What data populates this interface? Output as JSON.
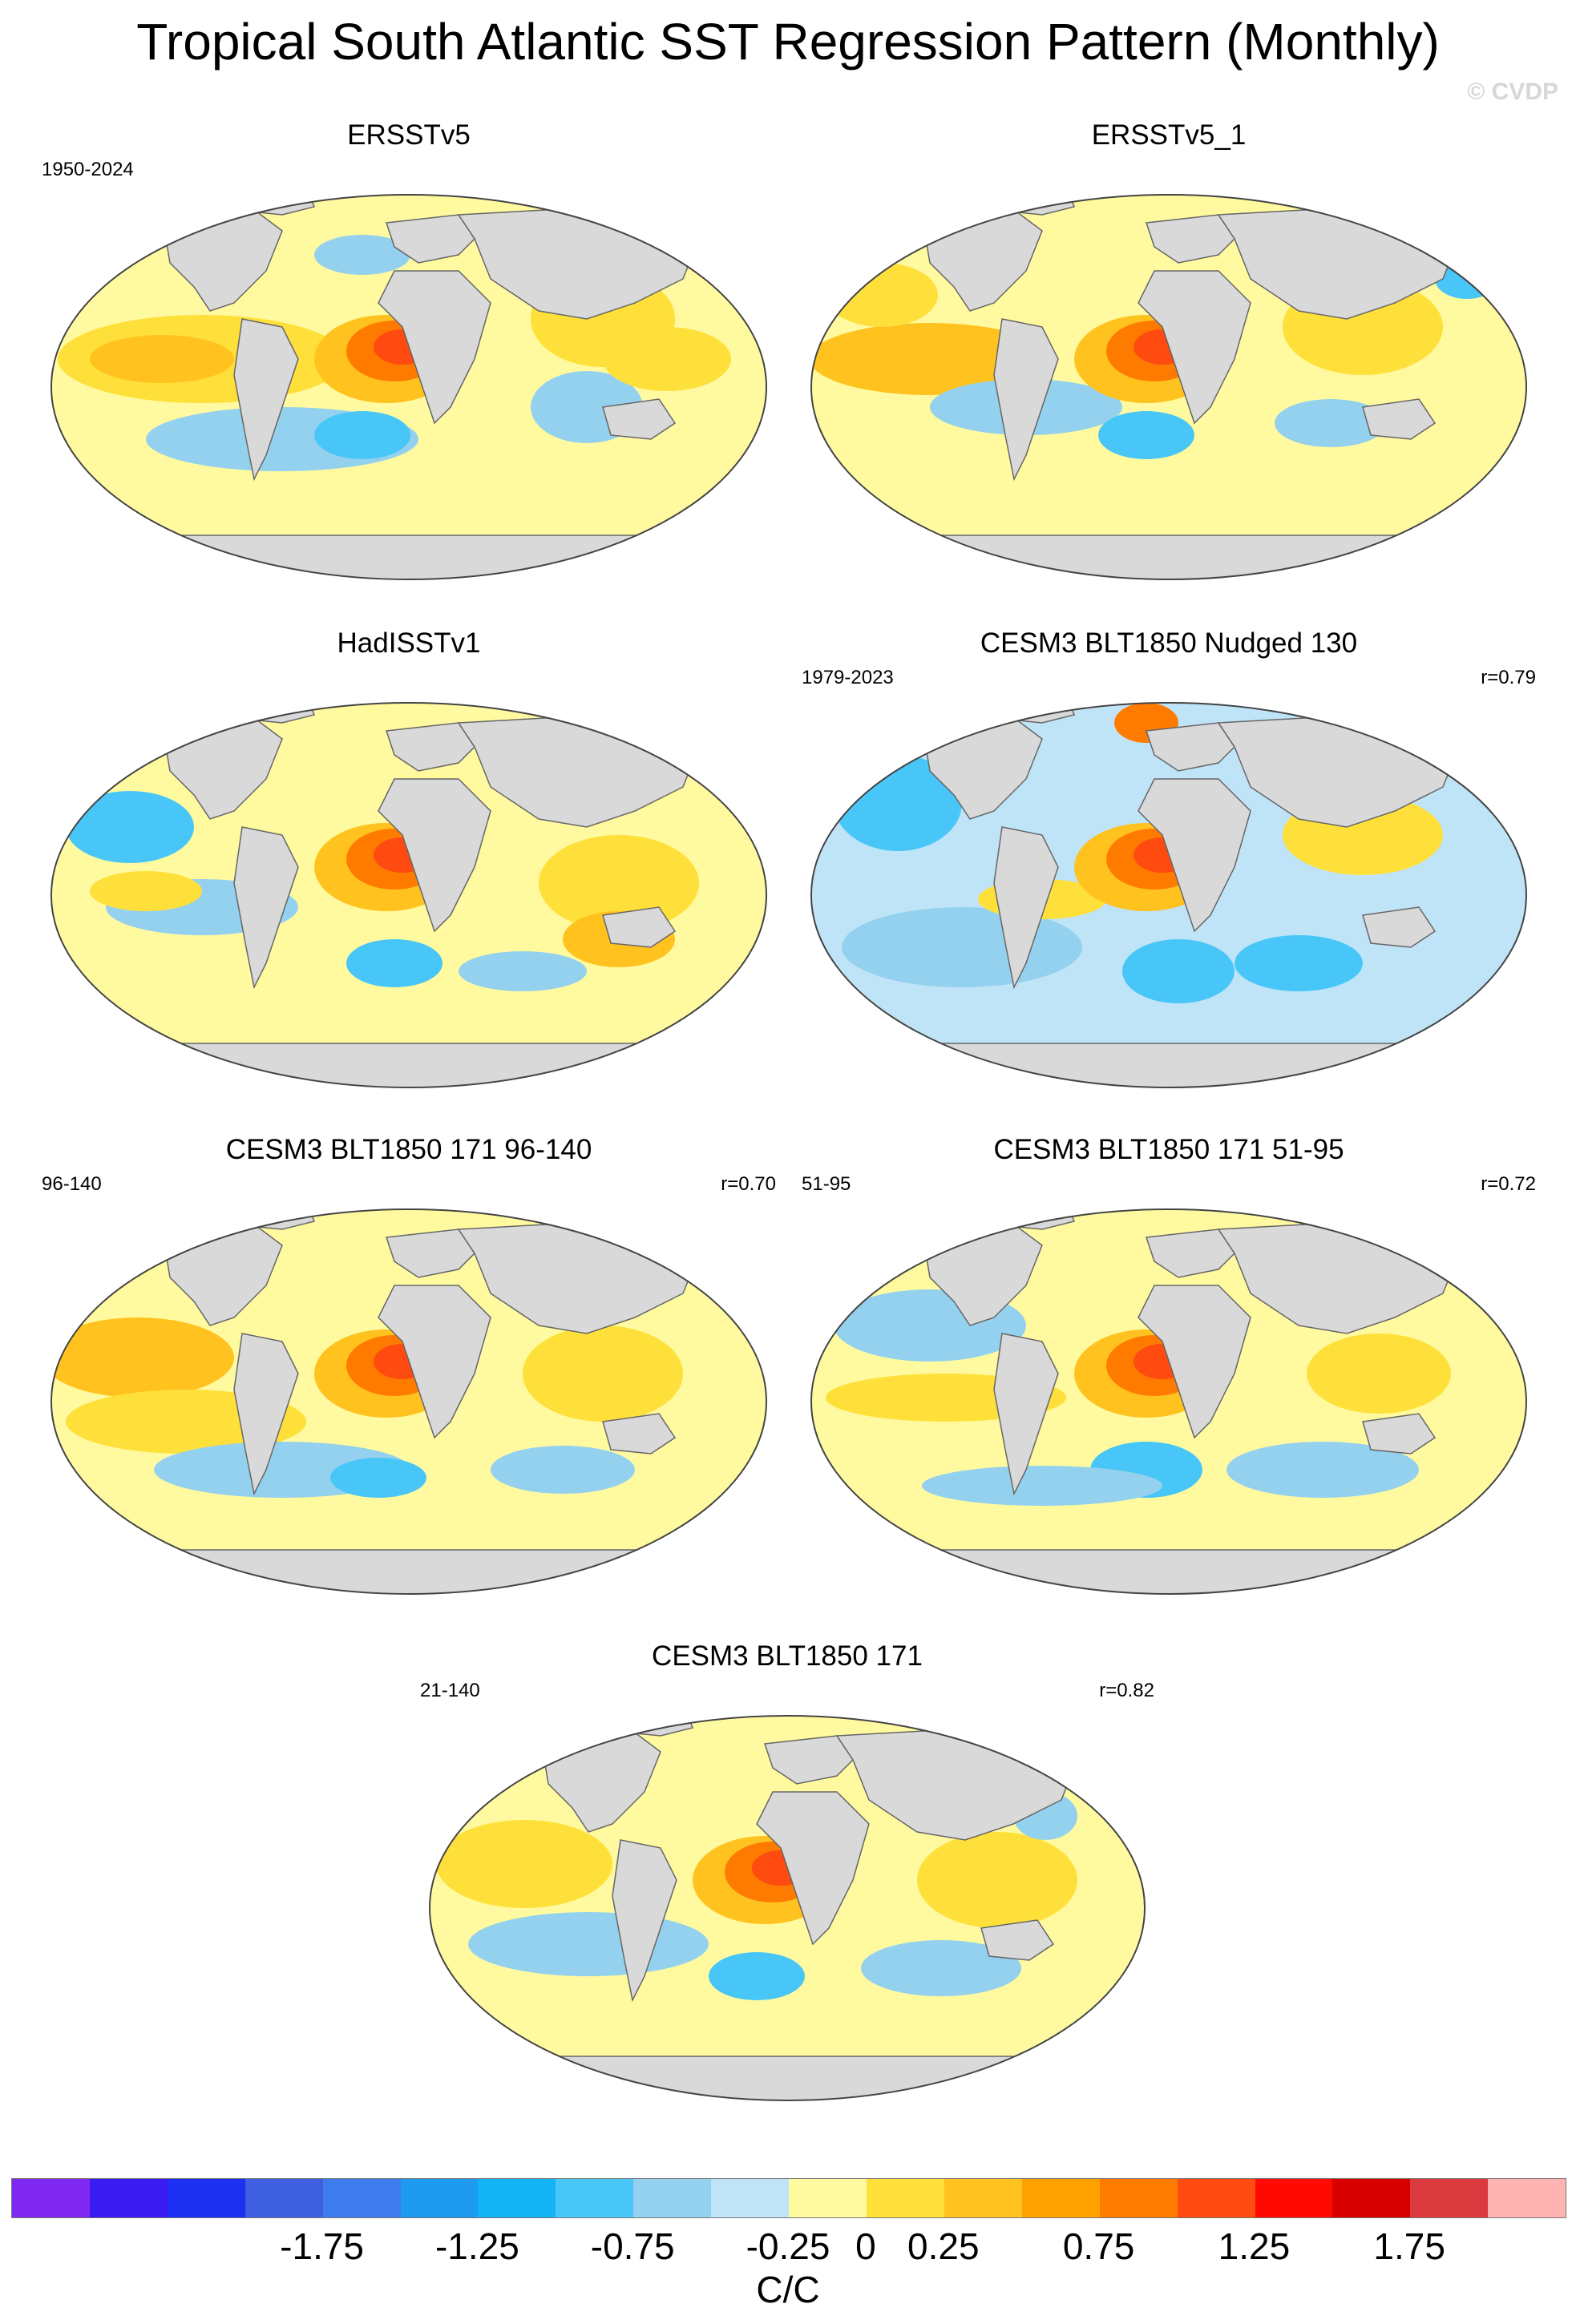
{
  "title": "Tropical South Atlantic SST Regression Pattern (Monthly)",
  "watermark": "© CVDP",
  "panels": [
    {
      "title": "ERSSTv5",
      "left_label": "1950-2024",
      "right_label": ""
    },
    {
      "title": "ERSSTv5_1",
      "left_label": "",
      "right_label": ""
    },
    {
      "title": "HadISSTv1",
      "left_label": "",
      "right_label": ""
    },
    {
      "title": "CESM3 BLT1850 Nudged 130",
      "left_label": "1979-2023",
      "right_label": "r=0.79"
    },
    {
      "title": "CESM3 BLT1850 171 96-140",
      "left_label": "96-140",
      "right_label": "r=0.70"
    },
    {
      "title": "CESM3 BLT1850 171 51-95",
      "left_label": "51-95",
      "right_label": "r=0.72"
    },
    {
      "title": "CESM3 BLT1850 171",
      "left_label": "21-140",
      "right_label": "r=0.82"
    }
  ],
  "colorbar": {
    "label": "C/C",
    "ticks": [
      "-1.75",
      "-1.25",
      "-0.75",
      "-0.25",
      "0",
      "0.25",
      "0.75",
      "1.25",
      "1.75"
    ],
    "colors": [
      "#7f29f0",
      "#3a1cf2",
      "#1d2ff0",
      "#3d5fe0",
      "#3d7bef",
      "#1e9bf0",
      "#12b4f6",
      "#48c6f7",
      "#94d1ee",
      "#bfe4f8",
      "#fffaa0",
      "#ffe03a",
      "#ffc21e",
      "#ffa200",
      "#ff7b00",
      "#ff4a10",
      "#ff0a00",
      "#d90000",
      "#db3a3e",
      "#ffb3b3"
    ]
  }
}
